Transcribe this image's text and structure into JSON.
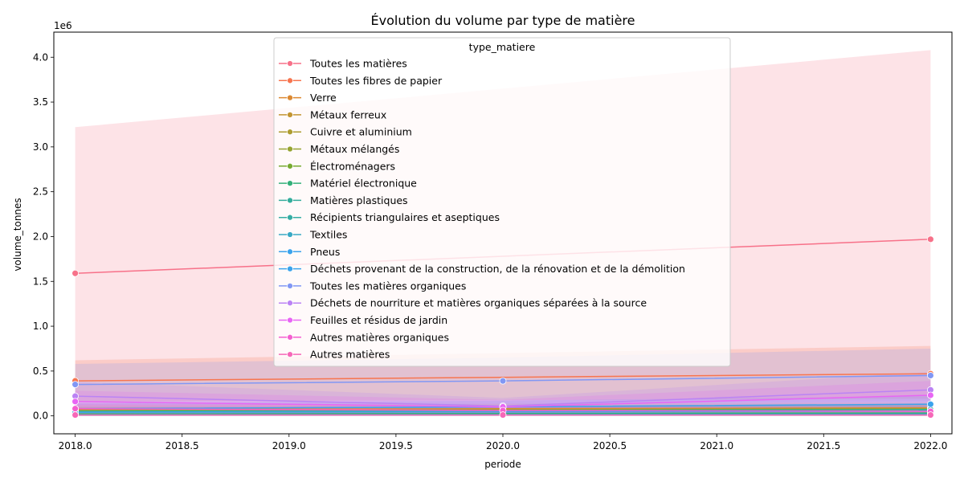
{
  "chart_data": {
    "type": "line",
    "title": "Évolution du volume par type de matière",
    "xlabel": "periode",
    "ylabel": "volume_tonnes",
    "y_offset_label": "1e6",
    "xlim": [
      2017.9,
      2022.1
    ],
    "ylim": [
      -0.2,
      4.28
    ],
    "x_ticks": [
      "2018.0",
      "2018.5",
      "2019.0",
      "2019.5",
      "2020.0",
      "2020.5",
      "2021.0",
      "2021.5",
      "2022.0"
    ],
    "y_ticks": [
      "0.0",
      "0.5",
      "1.0",
      "1.5",
      "2.0",
      "2.5",
      "3.0",
      "3.5",
      "4.0"
    ],
    "x": [
      2018,
      2020,
      2022
    ],
    "legend": {
      "title": "type_matiere",
      "placement": "upper-center"
    },
    "grid": false,
    "series": [
      {
        "name": "Toutes les matières",
        "color": "#f77189",
        "values": [
          1.59,
          null,
          1.97
        ],
        "ci_low": [
          0.0,
          null,
          0.0
        ],
        "ci_high": [
          3.22,
          null,
          4.08
        ]
      },
      {
        "name": "Toutes les fibres de papier",
        "color": "#f7754f",
        "values": [
          0.39,
          null,
          0.47
        ],
        "ci_low": [
          0.16,
          null,
          0.19
        ],
        "ci_high": [
          0.62,
          null,
          0.78
        ]
      },
      {
        "name": "Verre",
        "color": "#dc8932",
        "values": [
          0.07,
          null,
          0.09
        ],
        "ci_low": [
          0.03,
          null,
          0.04
        ],
        "ci_high": [
          0.12,
          null,
          0.15
        ]
      },
      {
        "name": "Métaux ferreux",
        "color": "#c39532",
        "values": [
          0.05,
          null,
          0.07
        ],
        "ci_low": [
          0.02,
          null,
          0.03
        ],
        "ci_high": [
          0.09,
          null,
          0.12
        ]
      },
      {
        "name": "Cuivre et aluminium",
        "color": "#ae9d31",
        "values": [
          0.01,
          null,
          0.02
        ],
        "ci_low": [
          0.0,
          null,
          0.0
        ],
        "ci_high": [
          0.02,
          null,
          0.04
        ]
      },
      {
        "name": "Métaux mélangés",
        "color": "#97a431",
        "values": [
          0.06,
          null,
          0.08
        ],
        "ci_low": [
          0.02,
          null,
          0.03
        ],
        "ci_high": [
          0.1,
          null,
          0.13
        ]
      },
      {
        "name": "Électroménagers",
        "color": "#77ab31",
        "values": [
          0.02,
          null,
          0.03
        ],
        "ci_low": [
          0.0,
          null,
          0.01
        ],
        "ci_high": [
          0.04,
          null,
          0.05
        ]
      },
      {
        "name": "Matériel électronique",
        "color": "#33b07a",
        "values": [
          0.02,
          null,
          0.03
        ],
        "ci_low": [
          0.0,
          null,
          0.01
        ],
        "ci_high": [
          0.04,
          null,
          0.05
        ]
      },
      {
        "name": "Matières plastiques",
        "color": "#35ad9c",
        "values": [
          0.05,
          null,
          0.07
        ],
        "ci_low": [
          0.02,
          null,
          0.03
        ],
        "ci_high": [
          0.09,
          null,
          0.12
        ]
      },
      {
        "name": "Récipients triangulaires et aseptiques",
        "color": "#36ada4",
        "values": [
          0.01,
          null,
          0.01
        ],
        "ci_low": [
          0.0,
          null,
          0.0
        ],
        "ci_high": [
          0.02,
          null,
          0.03
        ]
      },
      {
        "name": "Textiles",
        "color": "#38a9c5",
        "values": [
          0.01,
          null,
          0.02
        ],
        "ci_low": [
          0.0,
          null,
          0.0
        ],
        "ci_high": [
          0.03,
          null,
          0.04
        ]
      },
      {
        "name": "Pneus",
        "color": "#3ba3ec",
        "values": [
          0.04,
          null,
          0.05
        ],
        "ci_low": [
          0.01,
          null,
          0.02
        ],
        "ci_high": [
          0.07,
          null,
          0.09
        ]
      },
      {
        "name": "Déchets provenant de la construction, de la rénovation et de la démolition",
        "color": "#3ba3ec",
        "values": [
          0.08,
          0.1,
          0.13
        ],
        "ci_low": [
          0.03,
          0.04,
          0.05
        ],
        "ci_high": [
          0.14,
          0.17,
          0.22
        ]
      },
      {
        "name": "Toutes les matières organiques",
        "color": "#8197f4",
        "values": [
          0.35,
          0.39,
          0.45
        ],
        "ci_low": [
          0.12,
          0.13,
          0.16
        ],
        "ci_high": [
          0.58,
          0.65,
          0.75
        ]
      },
      {
        "name": "Déchets de nourriture et matières organiques séparées à la source",
        "color": "#bb83f4",
        "values": [
          0.22,
          0.11,
          0.29
        ],
        "ci_low": [
          0.06,
          0.03,
          0.09
        ],
        "ci_high": [
          0.38,
          0.2,
          0.49
        ]
      },
      {
        "name": "Feuilles et résidus de jardin",
        "color": "#e866f4",
        "values": [
          0.16,
          0.1,
          0.23
        ],
        "ci_low": [
          0.04,
          0.02,
          0.07
        ],
        "ci_high": [
          0.28,
          0.18,
          0.39
        ]
      },
      {
        "name": "Autres matières organiques",
        "color": "#f45fd0",
        "values": [
          0.08,
          0.06,
          0.05
        ],
        "ci_low": [
          0.02,
          0.01,
          0.01
        ],
        "ci_high": [
          0.14,
          0.11,
          0.09
        ]
      },
      {
        "name": "Autres matières",
        "color": "#f668b8",
        "values": [
          0.01,
          0.01,
          0.01
        ],
        "ci_low": [
          0.0,
          0.0,
          0.0
        ],
        "ci_high": [
          0.02,
          0.02,
          0.02
        ]
      }
    ]
  }
}
